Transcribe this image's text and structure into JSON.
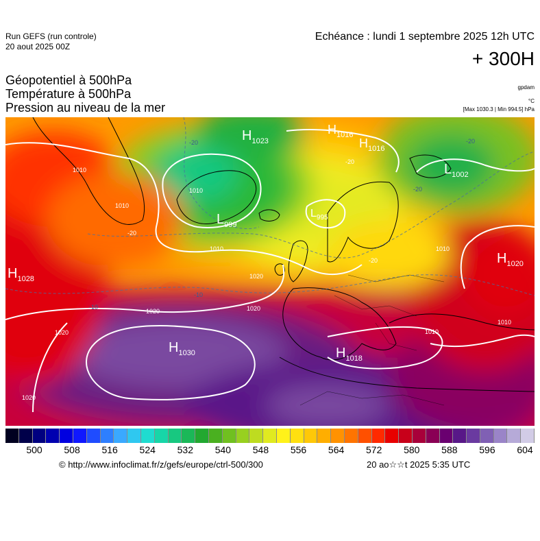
{
  "header": {
    "run_title": "Run GEFS (run controle)",
    "run_date": "20 aout 2025 00Z",
    "echeance": "Echéance : lundi 1 septembre 2025 12h UTC",
    "lead_time": "+ 300H"
  },
  "parameters": {
    "line1": "Géopotentiel à 500hPa",
    "line2": "Température à 500hPa",
    "line3": "Pression au niveau de la mer"
  },
  "units": {
    "geopotential": "gpdam",
    "temperature": "°C",
    "pressure_minmax": "[Max 1030.3 | Min 994.5] hPa"
  },
  "pressure_centers": [
    {
      "type": "H",
      "value": "1023"
    },
    {
      "type": "H",
      "value": "1016"
    },
    {
      "type": "H",
      "value": "1016"
    },
    {
      "type": "L",
      "value": "1002"
    },
    {
      "type": "L",
      "value": "999"
    },
    {
      "type": "L",
      "value": "995"
    },
    {
      "type": "H",
      "value": "1028"
    },
    {
      "type": "H",
      "value": "1020"
    },
    {
      "type": "H",
      "value": "1030"
    },
    {
      "type": "H",
      "value": "1018"
    }
  ],
  "isobar_labels": [
    "1010",
    "1010",
    "1010",
    "1020",
    "1020",
    "1020",
    "1020",
    "1010",
    "1010",
    "1010",
    "1010",
    "1020"
  ],
  "isotherm_labels": [
    "-20",
    "-20",
    "-20",
    "-20",
    "-20",
    "-10",
    "-10",
    "-20"
  ],
  "scale": {
    "labels": [
      "500",
      "508",
      "516",
      "524",
      "532",
      "540",
      "548",
      "556",
      "564",
      "572",
      "580",
      "588",
      "596",
      "604"
    ],
    "colors": [
      "#000020",
      "#00004a",
      "#000080",
      "#0000b0",
      "#0000e0",
      "#1018ff",
      "#1f4cff",
      "#2e7fff",
      "#3aa9ff",
      "#2fc8f0",
      "#1fdcd0",
      "#17d6a8",
      "#18c880",
      "#1bb858",
      "#22a830",
      "#4ab020",
      "#70c020",
      "#98d020",
      "#bedc20",
      "#e0ea20",
      "#fff21a",
      "#ffe010",
      "#ffc808",
      "#ffae00",
      "#ff9200",
      "#ff7400",
      "#ff5000",
      "#ff2a00",
      "#e80000",
      "#c8001a",
      "#a8003a",
      "#8a0055",
      "#6a0070",
      "#581888",
      "#6a3aa0",
      "#8060b4",
      "#9a84c8",
      "#b6aad8",
      "#d2cce6"
    ]
  },
  "footer": {
    "copyright": "© http://www.infoclimat.fr/z/gefs/europe/ctrl-500/300",
    "generated": "20 ao☆☆t 2025  5:35 UTC"
  },
  "icons": [
    "copyright-symbol"
  ]
}
